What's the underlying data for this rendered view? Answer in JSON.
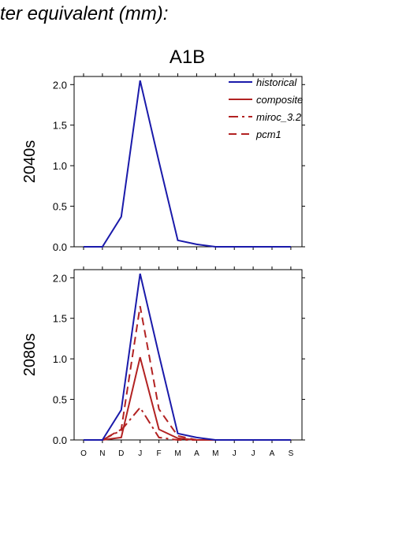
{
  "heading": "ter equivalent (mm):",
  "chart_data": [
    {
      "type": "line",
      "title": "A1B",
      "ylabel": "2040s",
      "categories": [
        "O",
        "N",
        "D",
        "J",
        "F",
        "M",
        "A",
        "M",
        "J",
        "J",
        "A",
        "S"
      ],
      "ylim": [
        0,
        2.1
      ],
      "yticks": [
        "0.0",
        "0.5",
        "1.0",
        "1.5",
        "2.0"
      ],
      "xtick_labels_shown": false,
      "legend_position": "top-right",
      "legend": [
        {
          "label": "historical",
          "color": "#1a1aaa",
          "style": "solid"
        },
        {
          "label": "composite",
          "color": "#b22222",
          "style": "solid"
        },
        {
          "label": "miroc_3.2",
          "color": "#b22222",
          "style": "dashdot"
        },
        {
          "label": "pcm1",
          "color": "#b22222",
          "style": "dashed"
        }
      ],
      "series": [
        {
          "name": "historical",
          "color": "#1a1aaa",
          "style": "solid",
          "values": [
            0,
            0,
            0.37,
            2.05,
            1.05,
            0.08,
            0.03,
            0,
            0,
            0,
            0,
            0
          ]
        }
      ]
    },
    {
      "type": "line",
      "ylabel": "2080s",
      "categories": [
        "O",
        "N",
        "D",
        "J",
        "F",
        "M",
        "A",
        "M",
        "J",
        "J",
        "A",
        "S"
      ],
      "ylim": [
        0,
        2.1
      ],
      "yticks": [
        "0.0",
        "0.5",
        "1.0",
        "1.5",
        "2.0"
      ],
      "xtick_labels_shown": true,
      "series": [
        {
          "name": "historical",
          "color": "#1a1aaa",
          "style": "solid",
          "values": [
            0,
            0,
            0.37,
            2.05,
            1.05,
            0.08,
            0.03,
            0,
            0,
            0,
            0,
            0
          ]
        },
        {
          "name": "composite",
          "color": "#b22222",
          "style": "solid",
          "values": [
            0,
            0,
            0.03,
            1.02,
            0.13,
            0.02,
            0,
            0,
            0,
            0,
            0,
            0
          ]
        },
        {
          "name": "miroc_3.2",
          "color": "#b22222",
          "style": "dashdot",
          "values": [
            0,
            0,
            0.12,
            0.4,
            0.03,
            0,
            0,
            0,
            0,
            0,
            0,
            0
          ]
        },
        {
          "name": "pcm1",
          "color": "#b22222",
          "style": "dashed",
          "values": [
            0,
            0,
            0.13,
            1.65,
            0.38,
            0.05,
            0,
            0,
            0,
            0,
            0,
            0
          ]
        }
      ]
    }
  ]
}
